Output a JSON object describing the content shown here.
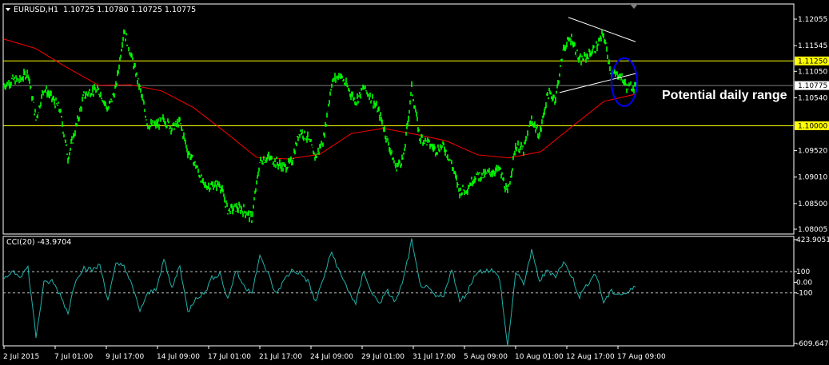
{
  "header": {
    "symbol": "EURUSD,H1",
    "ohlc": "1.10725 1.10780 1.10725 1.10775",
    "menu_icon": "triangle-down-icon"
  },
  "colors": {
    "background": "#000000",
    "price": "#00ff00",
    "moving_average": "#ff0000",
    "level_lines": "#ffff00",
    "bid_line": "#808080",
    "trendlines": "#ffffff",
    "ellipse": "#0000ff",
    "cci": "#20b2aa"
  },
  "annotation": {
    "text": "Potential daily range",
    "ellipse_center": {
      "time": "2015-08-17T19:00",
      "price": 1.1084
    }
  },
  "chart_data": [
    {
      "type": "line",
      "title": "EURUSD,H1",
      "timeframe": "H1",
      "ylim": [
        1.08005,
        1.12055
      ],
      "y_ticks": [
        "1.12055",
        "1.11545",
        "1.11050",
        "1.10540",
        "1.09520",
        "1.09010",
        "1.08500",
        "1.08005"
      ],
      "x_ticks": [
        "2 Jul 2015",
        "7 Jul 01:00",
        "9 Jul 17:00",
        "14 Jul 09:00",
        "17 Jul 01:00",
        "21 Jul 17:00",
        "24 Jul 09:00",
        "29 Jul 01:00",
        "31 Jul 17:00",
        "5 Aug 09:00",
        "10 Aug 01:00",
        "12 Aug 17:00",
        "17 Aug 09:00"
      ],
      "levels": [
        {
          "label": "1.11250",
          "value": 1.1125,
          "color": "#ffff00"
        },
        {
          "label": "1.10000",
          "value": 1.1,
          "color": "#ffff00"
        },
        {
          "label": "1.10775",
          "value": 1.10775,
          "color": "#808080",
          "bid": true
        }
      ],
      "series": [
        {
          "kind": "price",
          "values": [
            1.1078,
            1.1088,
            1.1088,
            1.1104,
            1.1012,
            1.1073,
            1.1053,
            1.1031,
            1.0939,
            1.0996,
            1.1058,
            1.1068,
            1.1065,
            1.1031,
            1.1073,
            1.1185,
            1.113,
            1.1073,
            1.1001,
            1.1001,
            1.1012,
            1.0996,
            1.1007,
            1.095,
            1.0924,
            1.0884,
            1.0884,
            1.0888,
            1.0837,
            1.0842,
            1.0837,
            1.0822,
            1.093,
            1.0939,
            1.093,
            1.0919,
            1.093,
            1.0991,
            1.0976,
            1.0939,
            1.0976,
            1.1084,
            1.1099,
            1.1073,
            1.1047,
            1.1073,
            1.1053,
            1.1022,
            1.097,
            1.0919,
            1.0939,
            1.1073,
            1.0978,
            1.0968,
            1.0954,
            1.0961,
            1.0927,
            1.0873,
            1.0881,
            1.0904,
            1.0904,
            1.0911,
            1.0916,
            1.0868,
            1.0961,
            1.0953,
            1.1012,
            1.0981,
            1.1062,
            1.1053,
            1.115,
            1.117,
            1.1124,
            1.1135,
            1.115,
            1.1176,
            1.1099,
            1.1099,
            1.1073,
            1.10775
          ]
        },
        {
          "kind": "moving_average",
          "values": [
            1.1167,
            1.1149,
            1.1112,
            1.1078,
            1.1079,
            1.1067,
            1.1035,
            1.0988,
            1.0939,
            1.0936,
            1.0945,
            1.0985,
            1.0995,
            1.0984,
            1.0971,
            1.0944,
            1.0938,
            1.095,
            1.0999,
            1.1047,
            1.1061
          ]
        }
      ],
      "trendlines": [
        {
          "from": {
            "time": "2015-08-12T19:00",
            "price": 1.1209
          },
          "to": {
            "time": "2015-08-18T07:00",
            "price": 1.1162
          }
        },
        {
          "from": {
            "time": "2015-08-12T08:00",
            "price": 1.1064
          },
          "to": {
            "time": "2015-08-18T08:00",
            "price": 1.1101
          }
        }
      ]
    },
    {
      "type": "line",
      "title": "CCI(20) -43.9704",
      "ylim": [
        -609.6474,
        423.9051
      ],
      "y_ticks": [
        "423.9051",
        "100",
        "0.00",
        "-100",
        "-609.6474"
      ],
      "levels": [
        100,
        -100
      ],
      "values": [
        12,
        112,
        62,
        137,
        -512,
        -12,
        12,
        -112,
        -287,
        38,
        137,
        112,
        162,
        -162,
        162,
        162,
        -37,
        -262,
        -112,
        -62,
        212,
        -62,
        162,
        -287,
        -137,
        -112,
        38,
        87,
        -162,
        112,
        -37,
        -87,
        237,
        87,
        -112,
        12,
        112,
        87,
        12,
        -187,
        50,
        287,
        87,
        -62,
        -212,
        112,
        -112,
        -187,
        -87,
        -187,
        38,
        387,
        -12,
        -62,
        -137,
        -137,
        137,
        -187,
        -87,
        87,
        112,
        112,
        38,
        -609,
        87,
        -12,
        287,
        12,
        112,
        62,
        187,
        62,
        -137,
        -12,
        87,
        -187,
        -87,
        -112,
        -100,
        -44
      ]
    }
  ]
}
